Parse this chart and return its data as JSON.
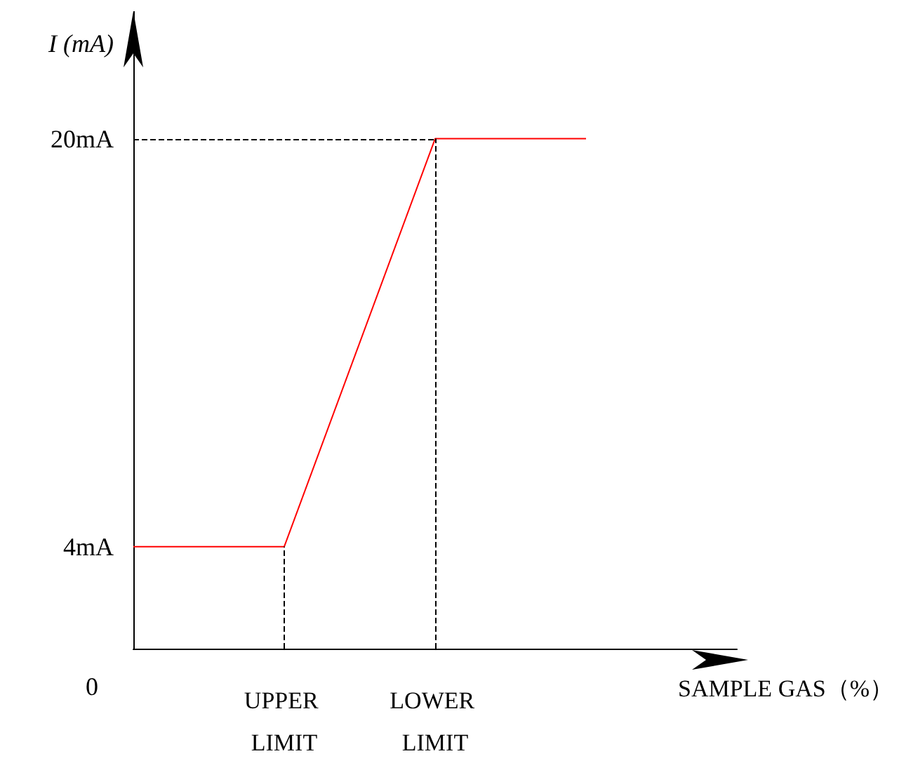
{
  "chart_data": {
    "type": "line",
    "xlabel": "SAMPLE GAS（%）",
    "ylabel": "I (mA)",
    "categories": [
      null,
      "UPPER LIMIT",
      "LOWER LIMIT",
      null,
      null
    ],
    "series": [
      {
        "color": "#ff0000",
        "values": [
          4,
          4,
          20,
          20,
          null
        ]
      }
    ],
    "ylim": [
      0,
      25
    ],
    "yticks": [
      {
        "value": 4,
        "label": "4mA"
      },
      {
        "value": 20,
        "label": "20mA"
      }
    ],
    "annotations": [
      "0"
    ],
    "ref_lines": [
      {
        "axis": "y",
        "value": 20,
        "line_style": "dashed",
        "color": "#000000"
      },
      {
        "axis": "x",
        "value": "UPPER LIMIT",
        "line_style": "dashed",
        "color": "#000000"
      },
      {
        "axis": "x",
        "value": "LOWER LIMIT",
        "line_style": "dashed",
        "color": "#000000"
      }
    ],
    "grid": false,
    "marker": "none",
    "line_style": "solid"
  }
}
